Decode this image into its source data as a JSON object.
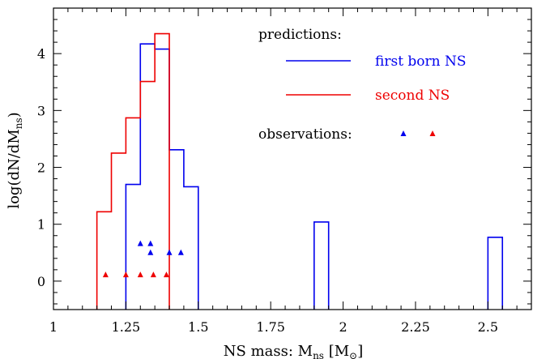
{
  "chart_data": {
    "type": "histogram",
    "xlabel": "NS mass: M",
    "xlabel_sub": "ns",
    "xlabel_unit_open": "[M",
    "xlabel_unit_sym": "⊙",
    "xlabel_unit_close": "]",
    "ylabel": "log(dN/dM",
    "ylabel_sub": "ns",
    "ylabel_close": ")",
    "xlim": [
      1.0,
      2.65
    ],
    "ylim": [
      -0.5,
      4.8
    ],
    "xticks": [
      {
        "value": 1,
        "label": "1"
      },
      {
        "value": 1.25,
        "label": "1.25"
      },
      {
        "value": 1.5,
        "label": "1.5"
      },
      {
        "value": 1.75,
        "label": "1.75"
      },
      {
        "value": 2,
        "label": "2"
      },
      {
        "value": 2.25,
        "label": "2.25"
      },
      {
        "value": 2.5,
        "label": "2.5"
      }
    ],
    "yticks": [
      {
        "value": 0,
        "label": "0"
      },
      {
        "value": 1,
        "label": "1"
      },
      {
        "value": 2,
        "label": "2"
      },
      {
        "value": 3,
        "label": "3"
      },
      {
        "value": 4,
        "label": "4"
      }
    ],
    "legend": {
      "predictions_title": "predictions:",
      "observations_title": "observations:",
      "position": "top-right"
    },
    "series": [
      {
        "name": "first born NS",
        "color": "#0000ee",
        "kind": "step",
        "bins": [
          {
            "x0": 1.25,
            "x1": 1.3,
            "y": 1.7
          },
          {
            "x0": 1.3,
            "x1": 1.35,
            "y": 4.17
          },
          {
            "x0": 1.35,
            "x1": 1.4,
            "y": 4.08
          },
          {
            "x0": 1.4,
            "x1": 1.45,
            "y": 2.31
          },
          {
            "x0": 1.45,
            "x1": 1.5,
            "y": 1.66
          },
          {
            "x0": 1.9,
            "x1": 1.95,
            "y": 1.04
          },
          {
            "x0": 2.5,
            "x1": 2.55,
            "y": 0.77
          }
        ]
      },
      {
        "name": "second NS",
        "color": "#ee0000",
        "kind": "step",
        "bins": [
          {
            "x0": 1.15,
            "x1": 1.2,
            "y": 1.22
          },
          {
            "x0": 1.2,
            "x1": 1.25,
            "y": 2.25
          },
          {
            "x0": 1.25,
            "x1": 1.3,
            "y": 2.87
          },
          {
            "x0": 1.3,
            "x1": 1.35,
            "y": 3.51
          },
          {
            "x0": 1.35,
            "x1": 1.4,
            "y": 4.35
          }
        ]
      }
    ],
    "observations": [
      {
        "name": "first born NS",
        "color": "#0000ee",
        "points": [
          {
            "x": 1.3,
            "y": 0.66
          },
          {
            "x": 1.335,
            "y": 0.66
          },
          {
            "x": 1.335,
            "y": 0.5
          },
          {
            "x": 1.4,
            "y": 0.5
          },
          {
            "x": 1.44,
            "y": 0.5
          }
        ]
      },
      {
        "name": "second NS",
        "color": "#ee0000",
        "points": [
          {
            "x": 1.18,
            "y": 0.11
          },
          {
            "x": 1.25,
            "y": 0.11
          },
          {
            "x": 1.3,
            "y": 0.11
          },
          {
            "x": 1.345,
            "y": 0.11
          },
          {
            "x": 1.39,
            "y": 0.11
          }
        ]
      }
    ]
  }
}
